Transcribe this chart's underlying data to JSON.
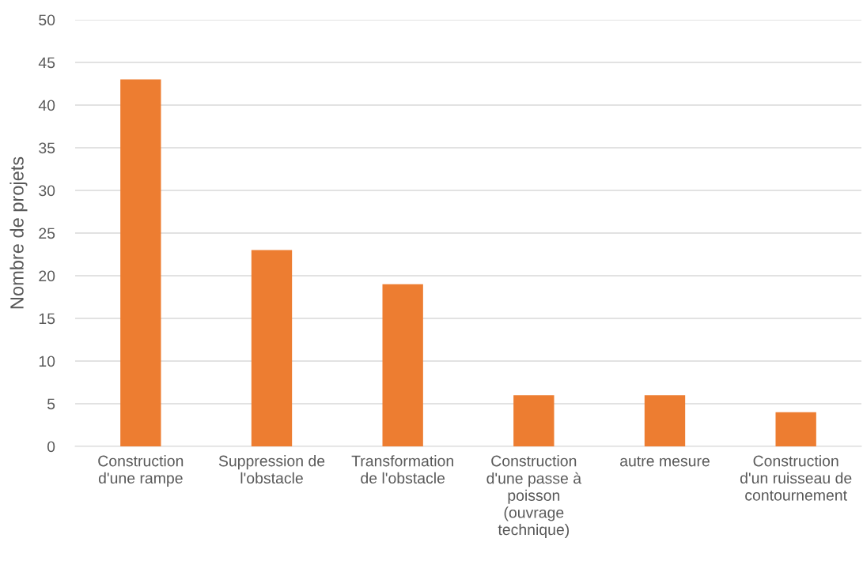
{
  "chart_data": {
    "type": "bar",
    "ylabel": "Nombre de projets",
    "categories": [
      "Construction d'une rampe",
      "Suppression de l'obstacle",
      "Transformation de l'obstacle",
      "Construction d'une passe à poisson (ouvrage technique)",
      "autre mesure",
      "Construction d'un ruisseau de contournement"
    ],
    "values": [
      43,
      23,
      19,
      6,
      6,
      4
    ],
    "color": "#ed7d31",
    "ylim": [
      0,
      50
    ],
    "yticks": [
      0,
      5,
      10,
      15,
      20,
      25,
      30,
      35,
      40,
      45,
      50
    ],
    "grid": "y"
  }
}
